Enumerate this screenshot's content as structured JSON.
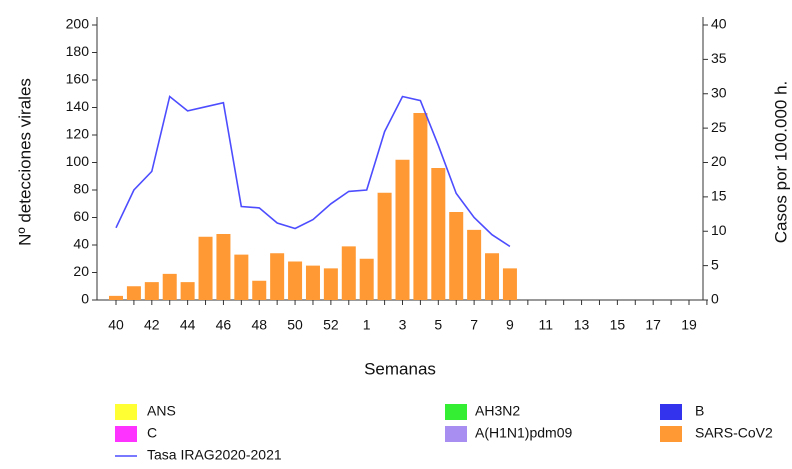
{
  "chart_data": {
    "type": "bar",
    "x_label": "Semanas",
    "y_label": "Nº detecciones virales",
    "y2_label": "Casos por 100.000 h.",
    "categories": [
      "40",
      null,
      "42",
      null,
      "44",
      null,
      "46",
      null,
      "48",
      null,
      "50",
      null,
      "52",
      null,
      "1",
      null,
      "3",
      null,
      "5",
      null,
      "7",
      null,
      "9",
      null,
      "11",
      null,
      "13",
      null,
      "15",
      null,
      "17",
      null,
      "19",
      null
    ],
    "ylim": [
      0,
      200
    ],
    "yticks": [
      0,
      20,
      40,
      60,
      80,
      100,
      120,
      140,
      160,
      180,
      200
    ],
    "y2lim": [
      0,
      40
    ],
    "y2ticks": [
      0,
      5,
      10,
      15,
      20,
      25,
      30,
      35,
      40
    ],
    "series": [
      {
        "name": "ANS",
        "color": "#ffff33",
        "values": [
          null,
          null,
          null,
          null,
          null,
          null,
          null,
          null,
          null,
          null,
          null,
          null,
          null,
          null,
          null,
          null,
          null,
          null,
          null,
          null,
          null,
          null,
          null,
          null,
          null,
          null,
          null,
          null,
          null,
          null,
          null,
          null,
          null,
          null
        ]
      },
      {
        "name": "AH3N2",
        "color": "#33ee33",
        "values": [
          null,
          null,
          null,
          null,
          null,
          null,
          null,
          null,
          null,
          null,
          null,
          null,
          null,
          null,
          null,
          null,
          null,
          null,
          null,
          null,
          null,
          null,
          null,
          null,
          null,
          null,
          null,
          null,
          null,
          null,
          null,
          null,
          null,
          null
        ]
      },
      {
        "name": "B",
        "color": "#3333ee",
        "values": [
          null,
          null,
          null,
          null,
          null,
          null,
          null,
          null,
          null,
          null,
          null,
          null,
          null,
          null,
          null,
          null,
          null,
          null,
          null,
          null,
          null,
          null,
          null,
          null,
          null,
          null,
          null,
          null,
          null,
          null,
          null,
          null,
          null,
          null
        ]
      },
      {
        "name": "C",
        "color": "#ff33ff",
        "values": [
          null,
          null,
          null,
          null,
          null,
          null,
          null,
          null,
          null,
          null,
          null,
          null,
          null,
          null,
          null,
          null,
          null,
          null,
          null,
          null,
          null,
          null,
          null,
          null,
          null,
          null,
          null,
          null,
          null,
          null,
          null,
          null,
          null,
          null
        ]
      },
      {
        "name": "A(H1N1)pdm09",
        "color": "#a98ef2",
        "values": [
          null,
          null,
          null,
          null,
          null,
          null,
          null,
          null,
          null,
          null,
          null,
          null,
          null,
          null,
          null,
          null,
          null,
          null,
          null,
          null,
          null,
          null,
          null,
          null,
          null,
          null,
          null,
          null,
          null,
          null,
          null,
          null,
          null,
          null
        ]
      },
      {
        "name": "SARS-CoV2",
        "color": "#ff9933",
        "values": [
          3,
          10,
          13,
          19,
          13,
          46,
          48,
          33,
          14,
          34,
          28,
          25,
          23,
          39,
          30,
          78,
          102,
          136,
          96,
          64,
          51,
          34,
          23,
          null,
          null,
          null,
          null,
          null,
          null,
          null,
          null,
          null,
          null,
          null
        ]
      },
      {
        "name": "Tasa IRAG2020-2021",
        "color": "#4d4dff",
        "axis": "y2",
        "type": "line",
        "values": [
          10.5,
          16,
          18.7,
          29.6,
          27.5,
          28.1,
          28.7,
          13.6,
          13.4,
          11.2,
          10.4,
          11.7,
          14,
          15.8,
          16,
          24.5,
          29.6,
          29,
          22.5,
          15.5,
          12,
          9.5,
          7.8,
          null,
          null,
          null,
          null,
          null,
          null,
          null,
          null,
          null,
          null,
          null
        ]
      }
    ]
  }
}
